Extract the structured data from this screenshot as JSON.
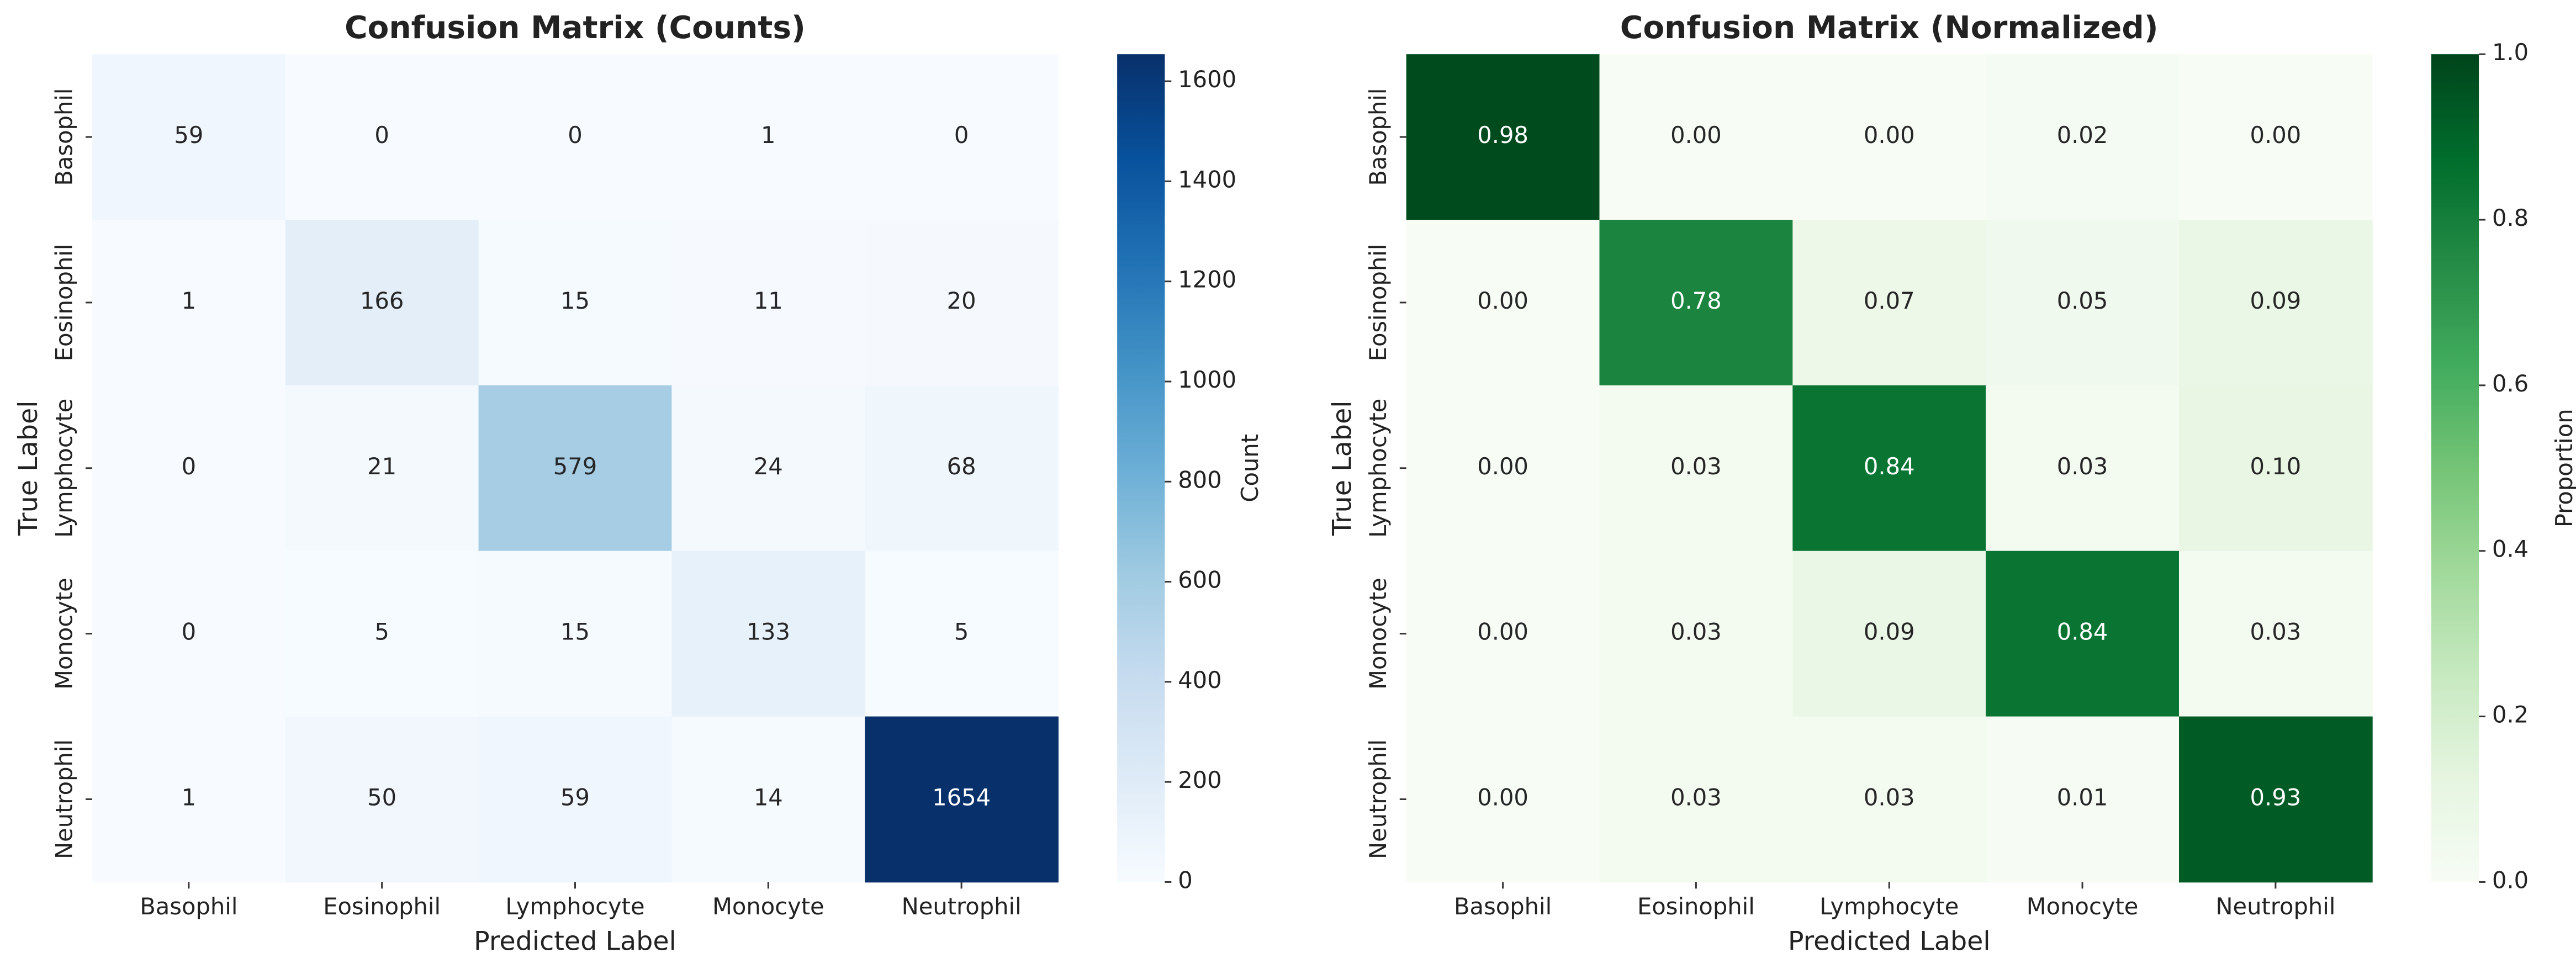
{
  "chart_data": [
    {
      "type": "heatmap",
      "title": "Confusion Matrix (Counts)",
      "x_label": "Predicted Label",
      "y_label": "True Label",
      "x_categories": [
        "Basophil",
        "Eosinophil",
        "Lymphocyte",
        "Monocyte",
        "Neutrophil"
      ],
      "y_categories": [
        "Basophil",
        "Eosinophil",
        "Lymphocyte",
        "Monocyte",
        "Neutrophil"
      ],
      "values": [
        [
          59,
          0,
          0,
          1,
          0
        ],
        [
          1,
          166,
          15,
          11,
          20
        ],
        [
          0,
          21,
          579,
          24,
          68
        ],
        [
          0,
          5,
          15,
          133,
          5
        ],
        [
          1,
          50,
          59,
          14,
          1654
        ]
      ],
      "colormap": "Blues",
      "colorbar_label": "Count",
      "clim": [
        0,
        1654
      ],
      "cticks": [
        0,
        200,
        400,
        600,
        800,
        1000,
        1200,
        1400,
        1600
      ]
    },
    {
      "type": "heatmap",
      "title": "Confusion Matrix (Normalized)",
      "x_label": "Predicted Label",
      "y_label": "True Label",
      "x_categories": [
        "Basophil",
        "Eosinophil",
        "Lymphocyte",
        "Monocyte",
        "Neutrophil"
      ],
      "y_categories": [
        "Basophil",
        "Eosinophil",
        "Lymphocyte",
        "Monocyte",
        "Neutrophil"
      ],
      "values": [
        [
          0.98,
          0,
          0,
          0.02,
          0
        ],
        [
          0,
          0.78,
          0.07,
          0.05,
          0.09
        ],
        [
          0,
          0.03,
          0.84,
          0.03,
          0.1
        ],
        [
          0,
          0.03,
          0.09,
          0.84,
          0.03
        ],
        [
          0,
          0.03,
          0.03,
          0.01,
          0.93
        ]
      ],
      "value_labels": [
        [
          "0.98",
          "0.00",
          "0.00",
          "0.02",
          "0.00"
        ],
        [
          "0.00",
          "0.78",
          "0.07",
          "0.05",
          "0.09"
        ],
        [
          "0.00",
          "0.03",
          "0.84",
          "0.03",
          "0.10"
        ],
        [
          "0.00",
          "0.03",
          "0.09",
          "0.84",
          "0.03"
        ],
        [
          "0.00",
          "0.03",
          "0.03",
          "0.01",
          "0.93"
        ]
      ],
      "colormap": "Greens",
      "colorbar_label": "Proportion",
      "clim": [
        0,
        1
      ],
      "cticks": [
        {
          "value": 0,
          "label": "0.0"
        },
        0.2,
        0.4,
        0.6,
        0.8,
        {
          "value": 1,
          "label": "1.0"
        }
      ]
    }
  ]
}
